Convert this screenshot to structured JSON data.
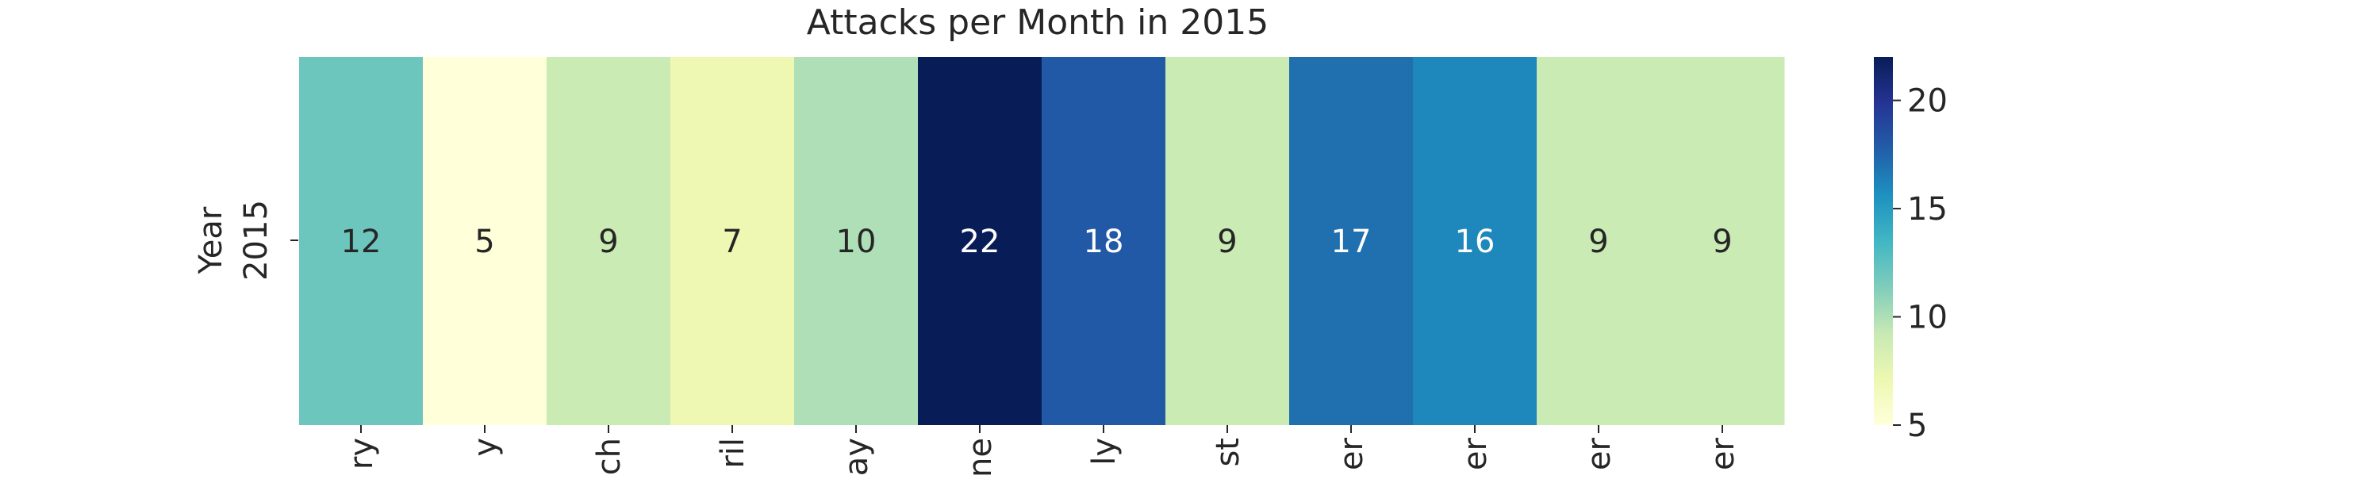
{
  "chart_data": {
    "type": "heatmap",
    "title": "Attacks per Month in 2015",
    "ylabel": "Year",
    "row_labels": [
      "2015"
    ],
    "categories": [
      "January",
      "February",
      "March",
      "April",
      "May",
      "June",
      "July",
      "August",
      "September",
      "October",
      "November",
      "December"
    ],
    "visible_tick_fragments": [
      "ry",
      "y",
      "ch",
      "ril",
      "ay",
      "ne",
      "ly",
      "st",
      "er",
      "er",
      "er",
      "er"
    ],
    "values": [
      [
        12,
        5,
        9,
        7,
        10,
        22,
        18,
        9,
        17,
        16,
        9,
        9
      ]
    ],
    "value_range": [
      5,
      22
    ],
    "colormap": "YlGnBu",
    "annotated": true,
    "colorbar": {
      "ticks": [
        5,
        10,
        15,
        20
      ],
      "tick_labels": [
        "5",
        "10",
        "15",
        "20"
      ]
    },
    "grid": false,
    "legend": "colorbar-right"
  }
}
